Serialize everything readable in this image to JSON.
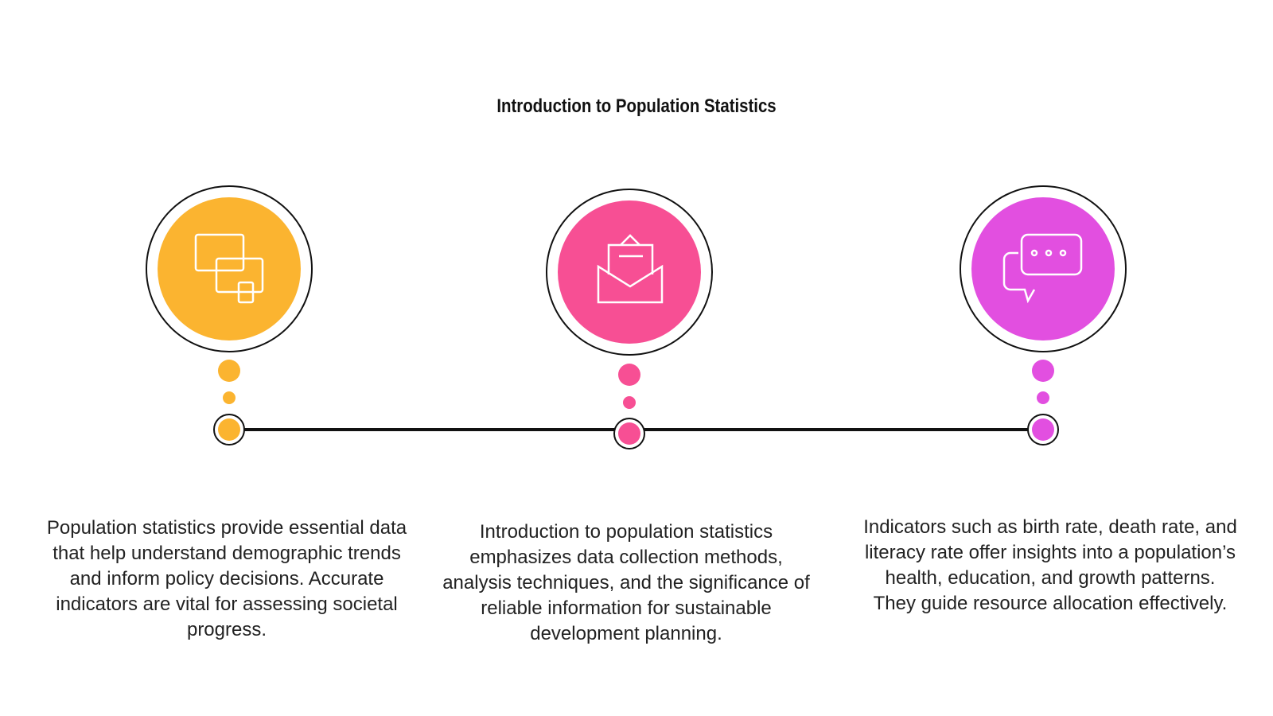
{
  "title": "Introduction to Population Statistics",
  "steps": [
    {
      "text": "Population statistics provide essential data that help understand demographic trends and inform policy decisions. Accurate indicators are vital for assessing societal progress."
    },
    {
      "text": "Introduction to population statistics emphasizes data collection methods, analysis techniques, and the significance of reliable information for sustainable development planning."
    },
    {
      "text": "Indicators such as birth rate, death rate, and literacy rate offer insights into a population’s health, education, and growth patterns. They guide resource allocation effectively."
    }
  ]
}
